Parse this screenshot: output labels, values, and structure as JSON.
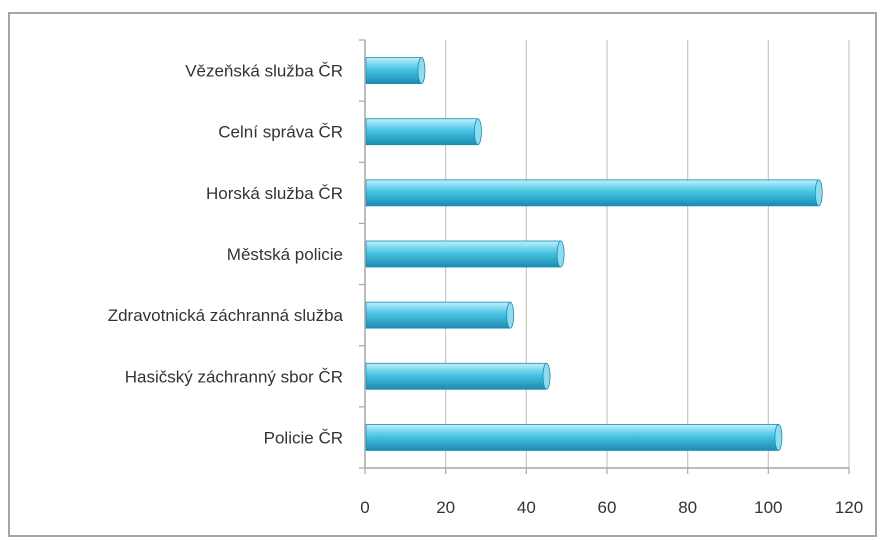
{
  "chart_data": {
    "type": "bar",
    "orientation": "horizontal",
    "title": "",
    "xlabel": "",
    "ylabel": "",
    "categories": [
      "Policie ČR",
      "Hasičský záchranný sbor ČR",
      "Zdravotnická záchranná služba",
      "Městská policie",
      "Horská služba ČR",
      "Celní správa ČR",
      "Vězeňská služba ČR"
    ],
    "values": [
      102.5,
      45,
      36,
      48.5,
      112.5,
      28,
      14
    ],
    "xlim": [
      0,
      120
    ],
    "xticks": [
      0,
      20,
      40,
      60,
      80,
      100,
      120
    ],
    "xtick_labels": [
      "0",
      "20",
      "40",
      "60",
      "80",
      "100",
      "120"
    ],
    "grid": "vertical",
    "legend": "none",
    "colors": {
      "bar_top": "#bfeffd",
      "bar_mid": "#47c5e3",
      "bar_bottom": "#1b8bb0",
      "bar_end": "#8fdcf0",
      "gridline": "#c8c8c8",
      "axis": "#a6a6a6",
      "frame": "#a6a6a6",
      "text": "#333333"
    }
  }
}
